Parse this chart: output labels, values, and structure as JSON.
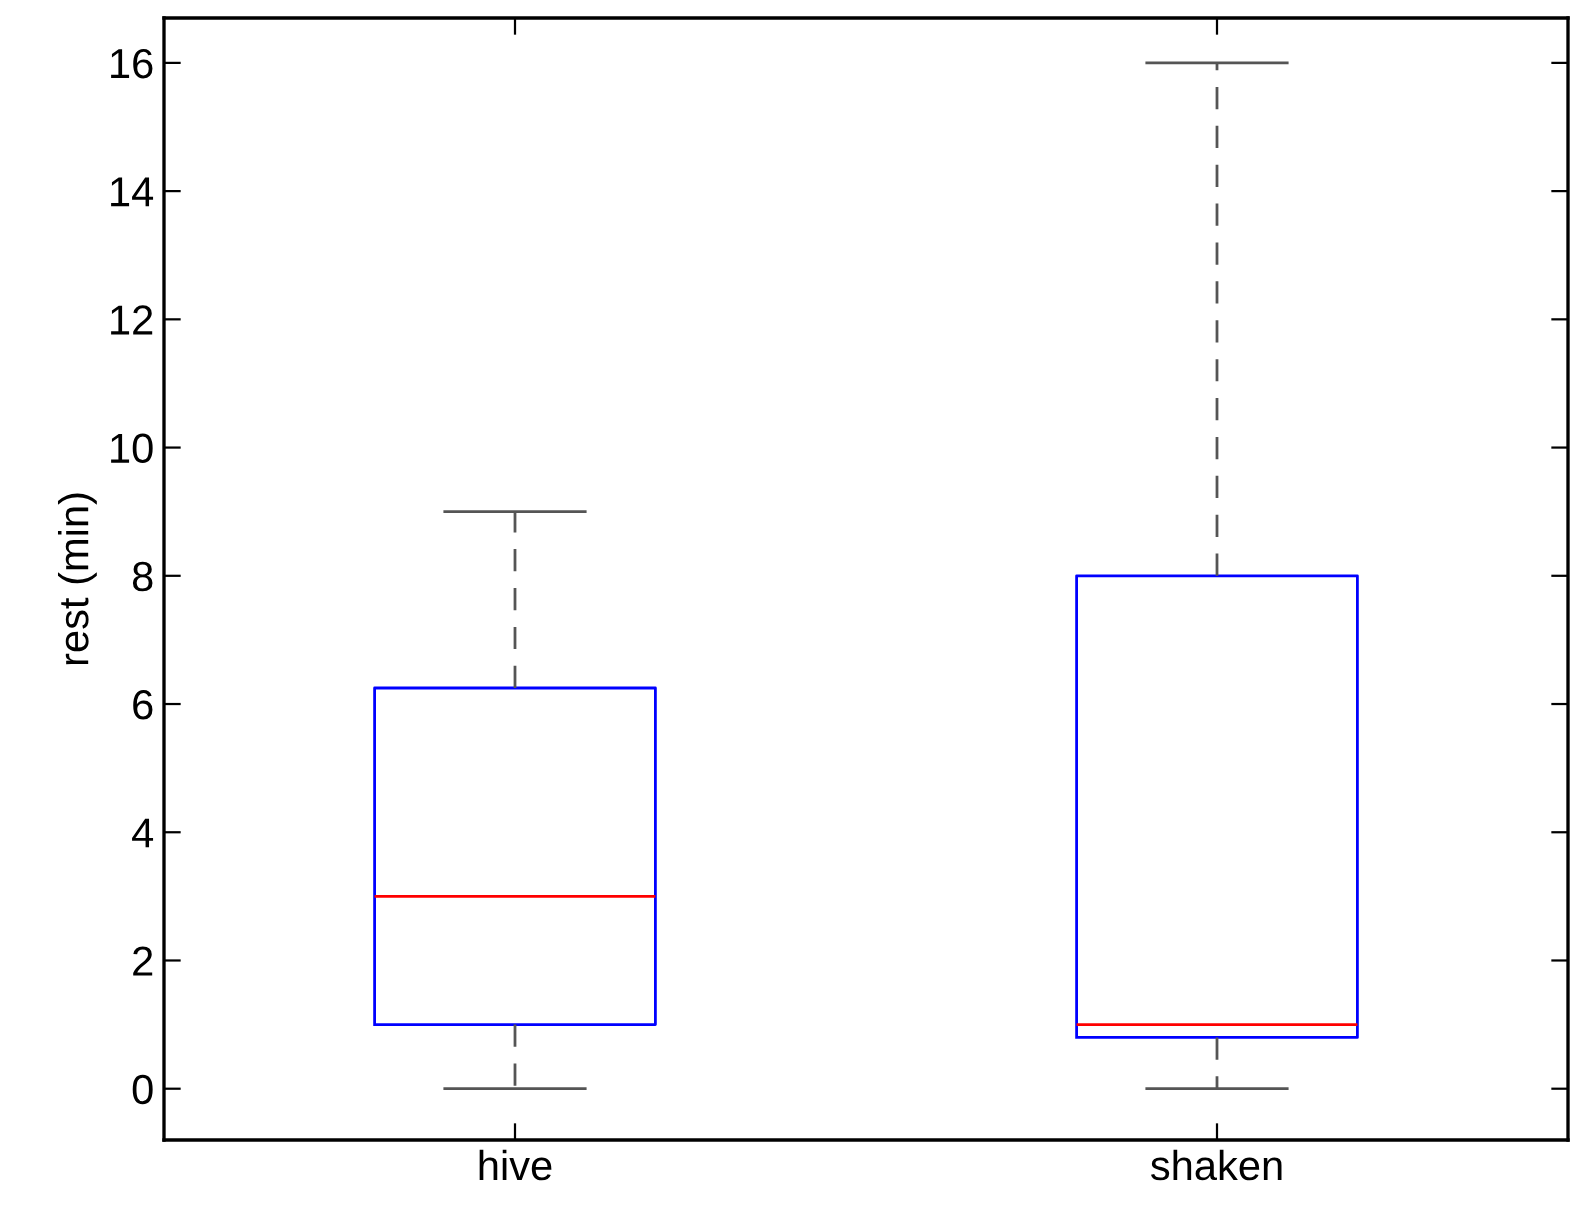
{
  "chart_data": {
    "type": "box",
    "ylabel": "rest (min)",
    "categories": [
      "hive",
      "shaken"
    ],
    "boxes": [
      {
        "low": 0,
        "q1": 1,
        "median": 3,
        "q3": 6.25,
        "high": 9
      },
      {
        "low": 0,
        "q1": 0.8,
        "median": 1,
        "q3": 8,
        "high": 16
      }
    ],
    "color": "#0000ff",
    "ylim": [
      -0.8,
      16.7
    ],
    "yticks": [
      0,
      2,
      4,
      6,
      8,
      10,
      12,
      14,
      16
    ],
    "grid": false
  }
}
